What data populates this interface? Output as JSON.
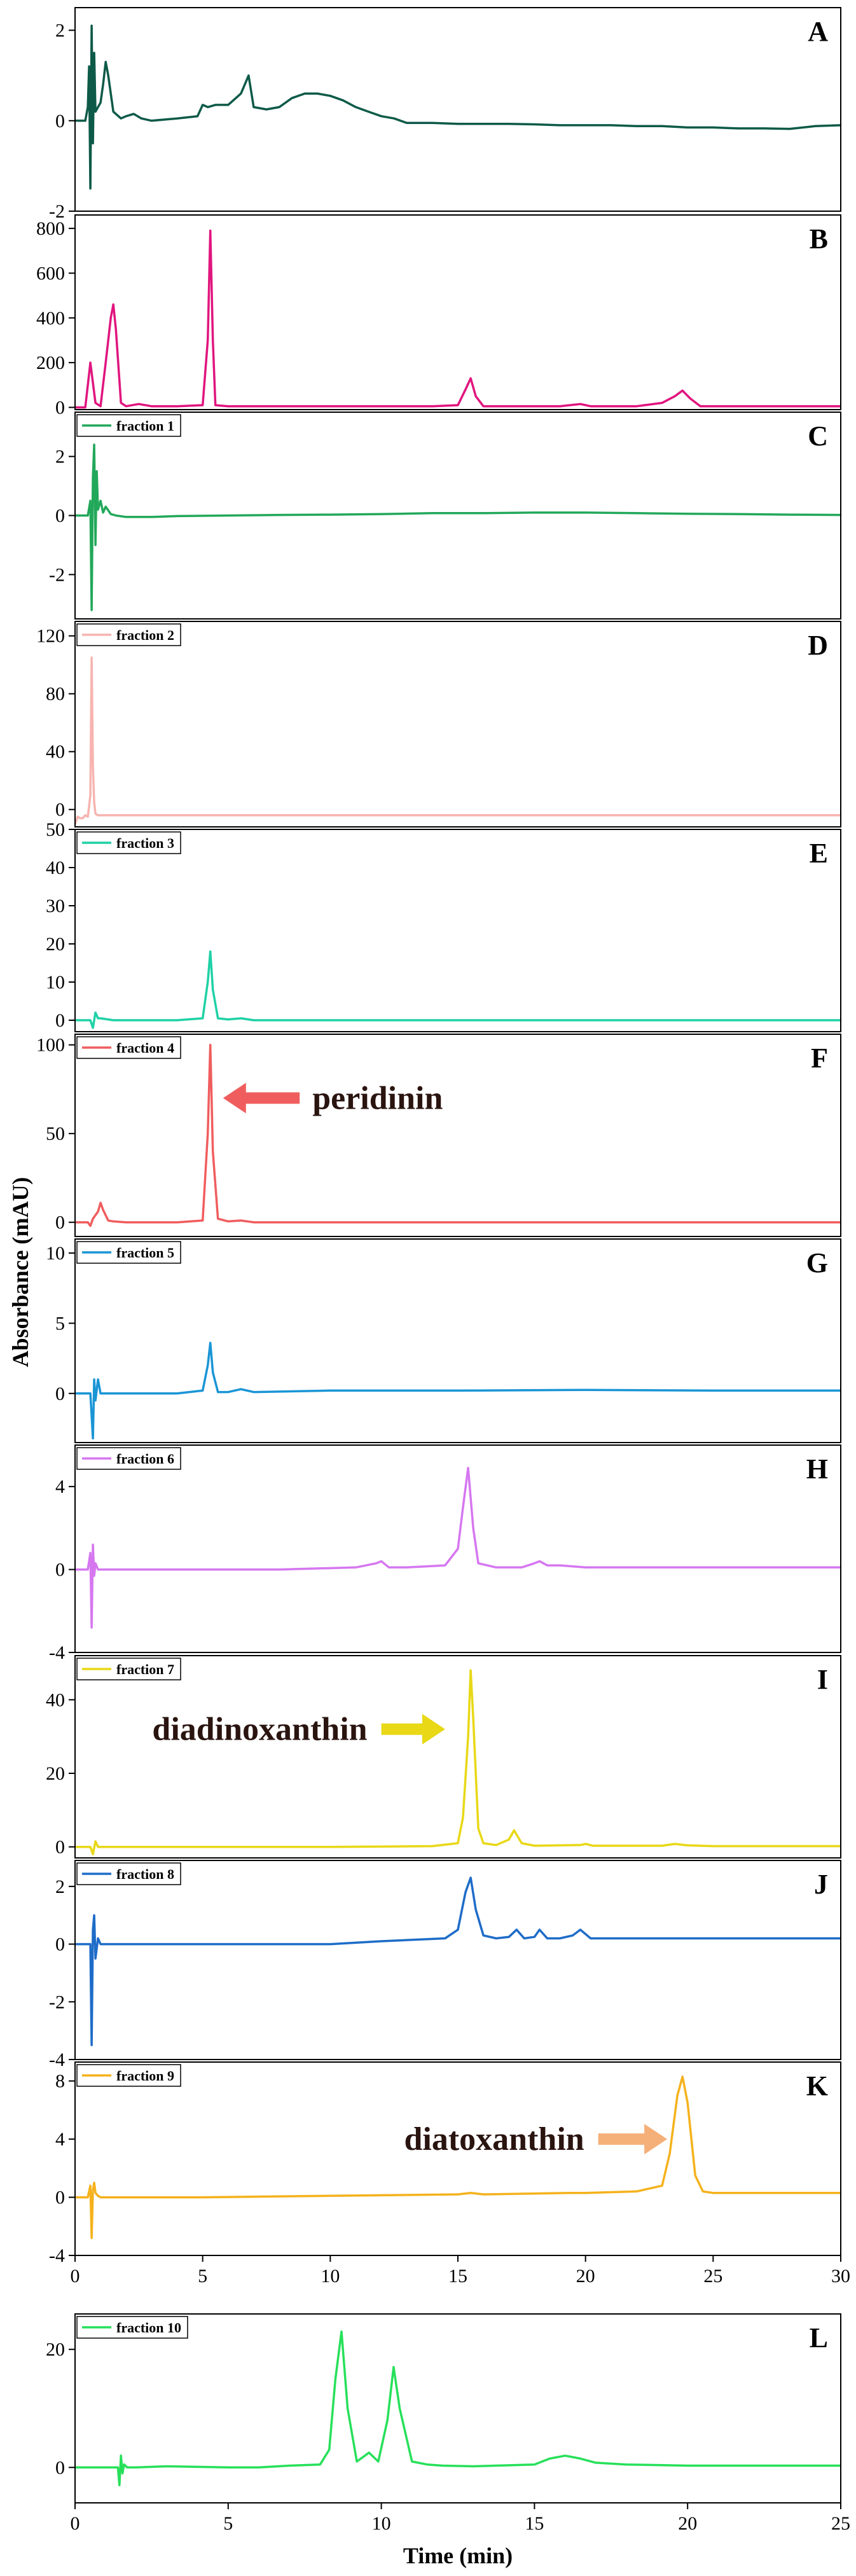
{
  "chart_data": {
    "type": "line",
    "title": "",
    "ylabel": "Absorbance (mAU)",
    "xlabel": "Time (min)",
    "panels": [
      {
        "letter": "A",
        "legend": "",
        "color": "#0d5a48",
        "xlim": [
          0,
          30
        ],
        "ylim": [
          -2,
          2.5
        ],
        "yticks": [
          -2,
          0,
          2
        ],
        "xticks": [],
        "x": [
          0,
          0.4,
          0.5,
          0.55,
          0.6,
          0.65,
          0.7,
          0.75,
          0.8,
          0.9,
          1.0,
          1.1,
          1.2,
          1.3,
          1.5,
          1.8,
          2.0,
          2.3,
          2.6,
          3.0,
          4.0,
          4.8,
          5.0,
          5.2,
          5.5,
          6.0,
          6.5,
          6.8,
          7.0,
          7.5,
          8.0,
          8.5,
          9.0,
          9.5,
          10.0,
          10.5,
          11.0,
          11.5,
          12.0,
          12.5,
          13.0,
          14.0,
          15.0,
          16.0,
          17.0,
          18.0,
          19.0,
          20.0,
          21.0,
          22.0,
          23.0,
          24.0,
          25.0,
          26.0,
          27.0,
          28.0,
          29.0,
          30.0
        ],
        "y": [
          0,
          0,
          0.3,
          1.2,
          -1.5,
          2.1,
          -0.5,
          1.5,
          0.2,
          0.3,
          0.4,
          0.8,
          1.3,
          1.0,
          0.2,
          0.05,
          0.1,
          0.15,
          0.05,
          0.0,
          0.05,
          0.1,
          0.35,
          0.3,
          0.35,
          0.35,
          0.6,
          1.0,
          0.3,
          0.25,
          0.3,
          0.5,
          0.6,
          0.6,
          0.55,
          0.45,
          0.3,
          0.2,
          0.1,
          0.05,
          -0.05,
          -0.05,
          -0.07,
          -0.07,
          -0.07,
          -0.08,
          -0.1,
          -0.1,
          -0.1,
          -0.12,
          -0.12,
          -0.15,
          -0.15,
          -0.17,
          -0.17,
          -0.18,
          -0.12,
          -0.1
        ]
      },
      {
        "letter": "B",
        "legend": "",
        "color": "#e0157e",
        "xlim": [
          0,
          30
        ],
        "ylim": [
          -10,
          860
        ],
        "yticks": [
          0,
          200,
          400,
          600,
          800
        ],
        "xticks": [],
        "x": [
          0,
          0.4,
          0.6,
          0.8,
          1.0,
          1.2,
          1.4,
          1.5,
          1.6,
          1.8,
          2.0,
          2.5,
          3.0,
          4.0,
          5.0,
          5.2,
          5.3,
          5.4,
          5.5,
          6.0,
          8.0,
          10.0,
          12.0,
          14.0,
          15.0,
          15.3,
          15.5,
          15.7,
          16.0,
          17.0,
          18.0,
          19.0,
          19.8,
          20.2,
          21.0,
          22.0,
          23.0,
          23.5,
          23.8,
          24.1,
          24.5,
          25.0,
          27.0,
          30.0
        ],
        "y": [
          0,
          0,
          200,
          20,
          5,
          200,
          400,
          460,
          350,
          20,
          5,
          15,
          5,
          5,
          10,
          300,
          790,
          300,
          10,
          5,
          5,
          5,
          5,
          5,
          10,
          80,
          130,
          50,
          5,
          5,
          5,
          5,
          15,
          5,
          5,
          5,
          20,
          50,
          75,
          40,
          5,
          5,
          5,
          5
        ]
      },
      {
        "letter": "C",
        "legend": "fraction 1",
        "color": "#22a85a",
        "xlim": [
          0,
          30
        ],
        "ylim": [
          -3.5,
          3.5
        ],
        "yticks": [
          -2,
          0,
          2
        ],
        "xticks": [],
        "x": [
          0,
          0.5,
          0.6,
          0.65,
          0.7,
          0.75,
          0.8,
          0.85,
          0.9,
          1.0,
          1.1,
          1.2,
          1.4,
          1.6,
          2.0,
          3.0,
          4.0,
          6.0,
          8.0,
          10.0,
          12.0,
          14.0,
          16.0,
          18.0,
          20.0,
          22.0,
          24.0,
          26.0,
          28.0,
          30.0
        ],
        "y": [
          0,
          0,
          0.5,
          -3.2,
          1.3,
          2.4,
          -1.0,
          1.5,
          0.2,
          0.5,
          0.1,
          0.3,
          0.05,
          0.0,
          -0.05,
          -0.05,
          -0.02,
          0.0,
          0.02,
          0.03,
          0.05,
          0.08,
          0.08,
          0.1,
          0.1,
          0.08,
          0.06,
          0.05,
          0.03,
          0.02
        ]
      },
      {
        "letter": "D",
        "legend": "fraction 2",
        "color": "#f7b4b0",
        "xlim": [
          0,
          30
        ],
        "ylim": [
          -12,
          130
        ],
        "yticks": [
          0,
          40,
          80,
          120
        ],
        "xticks": [],
        "x": [
          0,
          0.1,
          0.2,
          0.3,
          0.4,
          0.5,
          0.6,
          0.65,
          0.7,
          0.75,
          0.8,
          0.9,
          1.0,
          1.5,
          2.0,
          5.0,
          10.0,
          15.0,
          20.0,
          25.0,
          30.0
        ],
        "y": [
          -10,
          -5,
          -6,
          -6,
          -4,
          -5,
          10,
          105,
          30,
          5,
          -3,
          -4,
          -4,
          -4,
          -4,
          -4,
          -4,
          -4,
          -4,
          -4,
          -4
        ]
      },
      {
        "letter": "E",
        "legend": "fraction 3",
        "color": "#1fd1a6",
        "xlim": [
          0,
          30
        ],
        "ylim": [
          -3,
          50
        ],
        "yticks": [
          0,
          10,
          20,
          30,
          40,
          50
        ],
        "xticks": [],
        "x": [
          0,
          0.6,
          0.7,
          0.8,
          0.9,
          1.0,
          1.5,
          2.0,
          3.0,
          4.0,
          5.0,
          5.2,
          5.3,
          5.4,
          5.6,
          6.0,
          6.5,
          7.0,
          10.0,
          15.0,
          20.0,
          25.0,
          30.0
        ],
        "y": [
          0,
          0,
          -2,
          2,
          0.5,
          0.5,
          0,
          0,
          0,
          0,
          0.5,
          10,
          18,
          8,
          0.5,
          0.2,
          0.5,
          0,
          0,
          0,
          0,
          0,
          0
        ]
      },
      {
        "letter": "F",
        "legend": "fraction 4",
        "color": "#f05d5e",
        "xlim": [
          0,
          30
        ],
        "ylim": [
          -8,
          106
        ],
        "yticks": [
          0,
          50,
          100
        ],
        "xticks": [],
        "x": [
          0,
          0.5,
          0.6,
          0.7,
          0.9,
          1.0,
          1.1,
          1.3,
          1.5,
          2.0,
          3.0,
          4.0,
          5.0,
          5.2,
          5.3,
          5.4,
          5.6,
          6.0,
          6.5,
          7.0,
          10.0,
          15.0,
          20.0,
          25.0,
          30.0
        ],
        "y": [
          0,
          0,
          -2,
          2,
          6,
          11,
          7,
          1,
          0.5,
          0,
          0,
          0,
          1,
          50,
          100,
          40,
          2,
          0.5,
          1,
          0,
          0,
          0,
          0,
          0,
          0
        ]
      },
      {
        "letter": "G",
        "legend": "fraction 5",
        "color": "#1a95d6",
        "xlim": [
          0,
          30
        ],
        "ylim": [
          -3.5,
          11
        ],
        "yticks": [
          0,
          5,
          10
        ],
        "xticks": [],
        "x": [
          0,
          0.6,
          0.7,
          0.75,
          0.8,
          0.9,
          1.0,
          1.5,
          2.0,
          3.0,
          4.0,
          5.0,
          5.2,
          5.3,
          5.4,
          5.6,
          6.0,
          6.5,
          7.0,
          10.0,
          15.0,
          20.0,
          25.0,
          30.0
        ],
        "y": [
          0,
          0,
          -3.2,
          1.0,
          -0.5,
          1.0,
          0,
          0,
          0,
          0,
          0,
          0.2,
          2,
          3.6,
          1.5,
          0.1,
          0.1,
          0.3,
          0.1,
          0.2,
          0.2,
          0.25,
          0.2,
          0.2
        ]
      },
      {
        "letter": "H",
        "legend": "fraction 6",
        "color": "#d677f0",
        "xlim": [
          0,
          30
        ],
        "ylim": [
          -4,
          6
        ],
        "yticks": [
          -4,
          0,
          4
        ],
        "xticks": [],
        "x": [
          0,
          0.5,
          0.6,
          0.65,
          0.7,
          0.75,
          0.8,
          0.9,
          1.0,
          2.0,
          5.0,
          8.0,
          11.0,
          11.8,
          12.0,
          12.3,
          13.0,
          14.5,
          15.0,
          15.2,
          15.4,
          15.6,
          15.8,
          16.5,
          17.5,
          18.0,
          18.2,
          18.5,
          19.0,
          20.0,
          22.0,
          25.0,
          28.0,
          30.0
        ],
        "y": [
          0,
          0,
          0.8,
          -2.8,
          1.2,
          -0.3,
          0.3,
          0,
          0,
          0,
          0,
          0,
          0.1,
          0.3,
          0.4,
          0.1,
          0.1,
          0.2,
          1.0,
          3.0,
          4.9,
          2.0,
          0.3,
          0.1,
          0.1,
          0.3,
          0.4,
          0.2,
          0.2,
          0.1,
          0.1,
          0.1,
          0.1,
          0.1
        ]
      },
      {
        "letter": "I",
        "legend": "fraction 7",
        "color": "#e8d816",
        "xlim": [
          0,
          30
        ],
        "ylim": [
          -3,
          52
        ],
        "yticks": [
          0,
          20,
          40
        ],
        "xticks": [],
        "x": [
          0,
          0.6,
          0.7,
          0.8,
          0.9,
          1.0,
          2.0,
          5.0,
          10.0,
          14.0,
          15.0,
          15.2,
          15.4,
          15.5,
          15.6,
          15.8,
          16.0,
          16.5,
          17.0,
          17.2,
          17.5,
          18.0,
          19.8,
          20.0,
          20.3,
          23.0,
          23.5,
          24.0,
          25.0,
          30.0
        ],
        "y": [
          0,
          0,
          -2,
          1.5,
          0,
          0,
          0,
          0,
          0,
          0.2,
          1,
          8,
          30,
          48,
          35,
          5,
          1,
          0.5,
          2,
          4.5,
          1,
          0.3,
          0.5,
          0.8,
          0.3,
          0.3,
          0.8,
          0.4,
          0.2,
          0.2
        ]
      },
      {
        "letter": "J",
        "legend": "fraction 8",
        "color": "#1e6cc8",
        "xlim": [
          0,
          30
        ],
        "ylim": [
          -4,
          2.9
        ],
        "yticks": [
          -4,
          -2,
          0,
          2
        ],
        "xticks": [],
        "x": [
          0,
          0.6,
          0.65,
          0.7,
          0.75,
          0.8,
          0.9,
          1.0,
          2.0,
          5.0,
          10.0,
          12.0,
          14.5,
          15.0,
          15.3,
          15.5,
          15.7,
          16.0,
          16.5,
          17.0,
          17.3,
          17.6,
          18.0,
          18.2,
          18.5,
          19.0,
          19.5,
          19.8,
          20.2,
          21.0,
          22.0,
          25.0,
          30.0
        ],
        "y": [
          0,
          0,
          -3.5,
          0.5,
          1.0,
          -0.5,
          0.2,
          0,
          0,
          0,
          0,
          0.1,
          0.2,
          0.5,
          1.8,
          2.3,
          1.2,
          0.3,
          0.2,
          0.25,
          0.5,
          0.2,
          0.25,
          0.5,
          0.2,
          0.2,
          0.3,
          0.5,
          0.2,
          0.2,
          0.2,
          0.2,
          0.2
        ]
      },
      {
        "letter": "K",
        "legend": "fraction 9",
        "color": "#f5b21d",
        "xlim": [
          0,
          30
        ],
        "ylim": [
          -4,
          9.3
        ],
        "yticks": [
          -4,
          0,
          4,
          8
        ],
        "xticks": [
          0,
          5,
          10,
          15,
          20,
          25,
          30
        ],
        "x": [
          0,
          0.5,
          0.6,
          0.65,
          0.7,
          0.75,
          0.8,
          0.9,
          1.0,
          2.0,
          5.0,
          10.0,
          15.0,
          15.5,
          16.0,
          19.5,
          20.0,
          22.0,
          23.0,
          23.3,
          23.6,
          23.8,
          24.0,
          24.3,
          24.6,
          25.0,
          26.0,
          28.0,
          30.0
        ],
        "y": [
          0,
          0,
          0.8,
          -2.8,
          0.5,
          1.0,
          0.3,
          0.1,
          0,
          0,
          0,
          0.1,
          0.2,
          0.3,
          0.2,
          0.3,
          0.3,
          0.4,
          0.8,
          3.0,
          7.0,
          8.3,
          6.5,
          1.5,
          0.4,
          0.3,
          0.3,
          0.3,
          0.3
        ]
      },
      {
        "letter": "L",
        "legend": "fraction 10",
        "color": "#27e05a",
        "xlim": [
          0,
          25
        ],
        "ylim": [
          -6,
          26
        ],
        "yticks": [
          0,
          20
        ],
        "xticks": [
          0,
          5,
          10,
          15,
          20,
          25
        ],
        "x": [
          0,
          1.4,
          1.45,
          1.5,
          1.55,
          1.6,
          1.7,
          2.0,
          3.0,
          5.0,
          6.0,
          7.0,
          8.0,
          8.3,
          8.5,
          8.7,
          8.9,
          9.2,
          9.6,
          9.9,
          10.2,
          10.4,
          10.6,
          11.0,
          11.5,
          12.0,
          13.0,
          15.0,
          15.5,
          16.0,
          16.5,
          17.0,
          18.0,
          20.0,
          22.0,
          25.0
        ],
        "y": [
          0,
          0,
          -3,
          2,
          -1,
          0.5,
          0,
          0,
          0.2,
          0,
          0,
          0.3,
          0.5,
          3,
          15,
          23,
          10,
          1,
          2.5,
          1,
          8,
          17,
          10,
          1,
          0.5,
          0.3,
          0.2,
          0.5,
          1.5,
          2.0,
          1.5,
          0.8,
          0.5,
          0.3,
          0.3,
          0.3
        ]
      }
    ],
    "annotations": [
      {
        "panel": "F",
        "text": "peridinin",
        "arrow": "left",
        "color": "#f05d5e"
      },
      {
        "panel": "I",
        "text": "diadinoxanthin",
        "arrow": "right",
        "color": "#e8d816"
      },
      {
        "panel": "K",
        "text": "diatoxanthin",
        "arrow": "right",
        "color": "#f5b079"
      }
    ]
  }
}
